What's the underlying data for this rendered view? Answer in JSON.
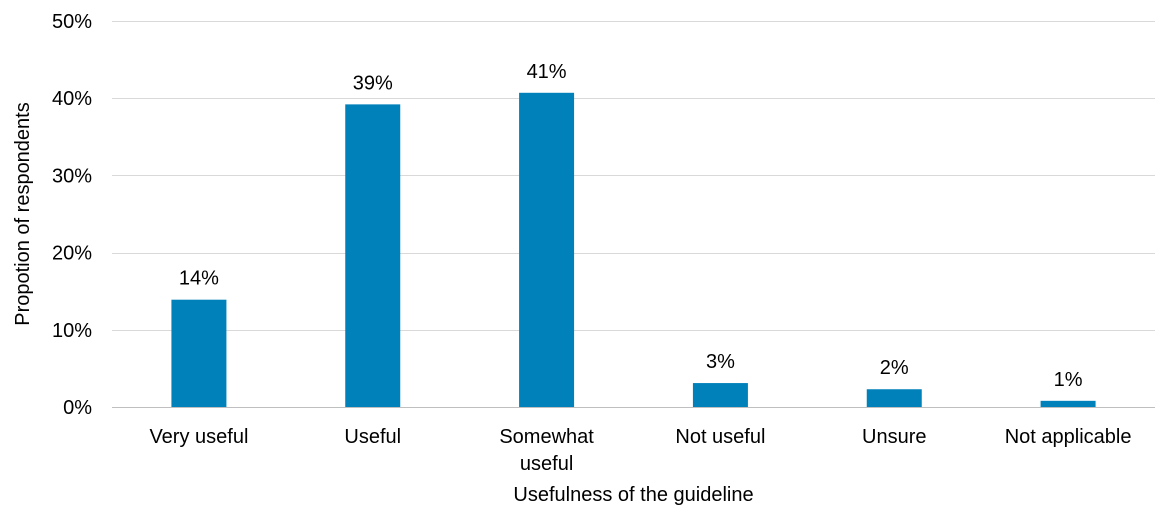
{
  "chart_data": {
    "type": "bar",
    "categories": [
      [
        "Very useful"
      ],
      [
        "Useful"
      ],
      [
        "Somewhat",
        "useful"
      ],
      [
        "Not useful"
      ],
      [
        "Unsure"
      ],
      [
        "Not applicable"
      ]
    ],
    "values": [
      14,
      39,
      41,
      3,
      2,
      1
    ],
    "bar_heights_pct": [
      13.9,
      39.2,
      40.7,
      3.1,
      2.3,
      0.8
    ],
    "data_labels": [
      "14%",
      "39%",
      "41%",
      "3%",
      "2%",
      "1%"
    ],
    "y_ticks": [
      0,
      10,
      20,
      30,
      40,
      50
    ],
    "y_tick_labels": [
      "0%",
      "10%",
      "20%",
      "30%",
      "40%",
      "50%"
    ],
    "ylim": [
      0,
      50
    ],
    "xlabel": "Usefulness of the guideline",
    "ylabel": "Propotion of respondents",
    "bar_color": "#0081b9",
    "grid": true,
    "legend": "none"
  }
}
